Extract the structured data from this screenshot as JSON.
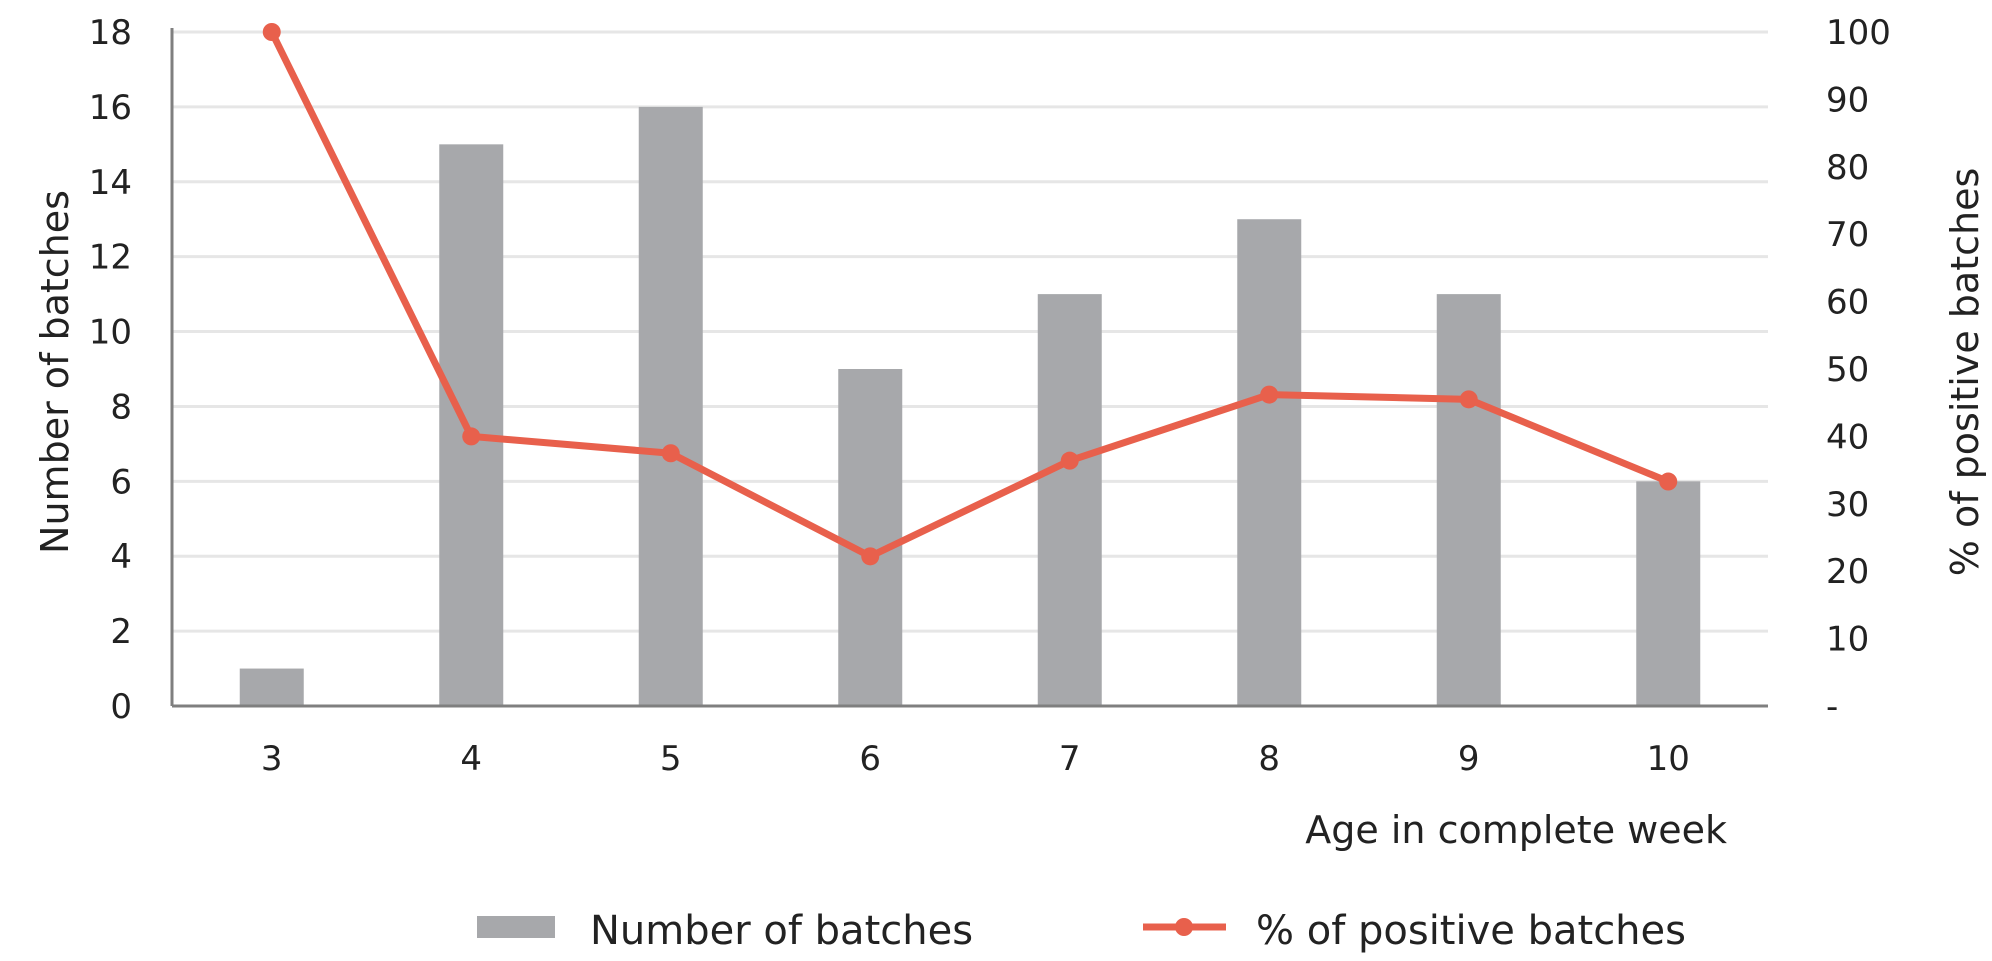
{
  "chart_data": {
    "type": "bar",
    "categories": [
      "3",
      "4",
      "5",
      "6",
      "7",
      "8",
      "9",
      "10"
    ],
    "series": [
      {
        "name": "Number of batches",
        "type": "bar",
        "axis": "left",
        "values": [
          1,
          15,
          16,
          9,
          11,
          13,
          11,
          6
        ]
      },
      {
        "name": "% of positive batches",
        "type": "line",
        "axis": "right",
        "values": [
          100,
          40,
          37.5,
          22.2,
          36.4,
          46.2,
          45.5,
          33.3
        ]
      }
    ],
    "xlabel": "Age in complete week",
    "ylabel": "Number of batches",
    "y2label": "% of positive batches",
    "ylim": [
      0,
      18
    ],
    "y2lim": [
      0,
      100
    ],
    "yticks": [
      "0",
      "2",
      "4",
      "6",
      "8",
      "10",
      "12",
      "14",
      "16",
      "18"
    ],
    "y2ticks": [
      "-",
      "10",
      "20",
      "30",
      "40",
      "50",
      "60",
      "70",
      "80",
      "90",
      "100"
    ],
    "grid": true,
    "legend": "bottom",
    "colors": {
      "bar": "#a7a8ab",
      "line": "#e8604c",
      "grid": "#e6e6e6",
      "axis": "#7f7f7f"
    }
  }
}
